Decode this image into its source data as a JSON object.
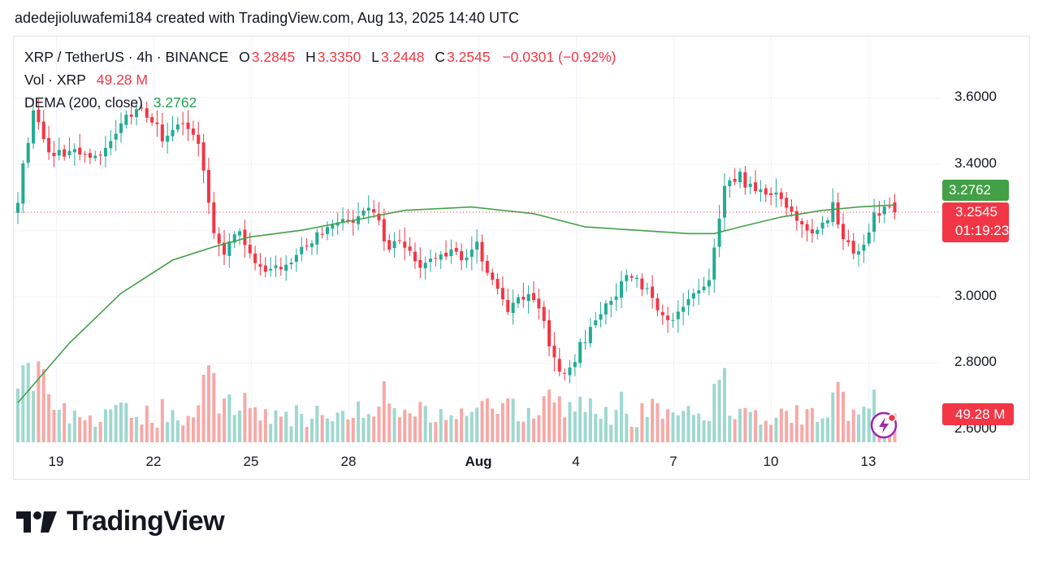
{
  "caption": "adedejioluwafemi184 created with TradingView.com, Aug 13, 2025 14:40 UTC",
  "legend": {
    "symbol": "XRP / TetherUS · 4h · BINANCE",
    "o_label": "O",
    "o_value": "3.2845",
    "h_label": "H",
    "h_value": "3.3350",
    "l_label": "L",
    "l_value": "3.2448",
    "c_label": "C",
    "c_value": "3.2545",
    "change": "−0.0301 (−0.92%)",
    "vol_label": "Vol · XRP",
    "vol_value": "49.28 M",
    "dema_label": "DEMA (200, close)",
    "dema_value": "3.2762"
  },
  "price_tags": {
    "dema": "3.2762",
    "last": "3.2545",
    "countdown": "01:19:23",
    "volume": "49.28 M"
  },
  "brand": "TradingView",
  "colors": {
    "up": "#22ab94",
    "down": "#f23645",
    "dema": "#43a047",
    "up_vol": "#9fd8cf",
    "down_vol": "#f7a9a7"
  },
  "chart_data": {
    "type": "candlestick",
    "title": "XRP / TetherUS · 4h · BINANCE",
    "y_ticks": [
      "3.6000",
      "3.4000",
      "3.0000",
      "2.8000",
      "2.6000"
    ],
    "ylim": [
      2.58,
      3.63
    ],
    "x_ticks": [
      "19",
      "22",
      "25",
      "28",
      "Aug",
      "4",
      "7",
      "10",
      "13"
    ],
    "last_price": 3.2545,
    "dema_last": 3.2762,
    "anchors": [
      {
        "i": 0,
        "p": 3.3
      },
      {
        "i": 3,
        "p": 3.56
      },
      {
        "i": 6,
        "p": 3.43
      },
      {
        "i": 10,
        "p": 3.44
      },
      {
        "i": 15,
        "p": 3.41
      },
      {
        "i": 20,
        "p": 3.52
      },
      {
        "i": 24,
        "p": 3.58
      },
      {
        "i": 28,
        "p": 3.48
      },
      {
        "i": 32,
        "p": 3.53
      },
      {
        "i": 35,
        "p": 3.46
      },
      {
        "i": 38,
        "p": 3.2
      },
      {
        "i": 40,
        "p": 3.13
      },
      {
        "i": 43,
        "p": 3.2
      },
      {
        "i": 45,
        "p": 3.14
      },
      {
        "i": 48,
        "p": 3.06
      },
      {
        "i": 51,
        "p": 3.09
      },
      {
        "i": 55,
        "p": 3.15
      },
      {
        "i": 58,
        "p": 3.18
      },
      {
        "i": 62,
        "p": 3.21
      },
      {
        "i": 66,
        "p": 3.24
      },
      {
        "i": 69,
        "p": 3.27
      },
      {
        "i": 71,
        "p": 3.16
      },
      {
        "i": 75,
        "p": 3.15
      },
      {
        "i": 78,
        "p": 3.09
      },
      {
        "i": 82,
        "p": 3.13
      },
      {
        "i": 86,
        "p": 3.12
      },
      {
        "i": 89,
        "p": 3.15
      },
      {
        "i": 92,
        "p": 3.05
      },
      {
        "i": 95,
        "p": 2.97
      },
      {
        "i": 99,
        "p": 3.01
      },
      {
        "i": 102,
        "p": 2.92
      },
      {
        "i": 105,
        "p": 2.76
      },
      {
        "i": 108,
        "p": 2.82
      },
      {
        "i": 112,
        "p": 2.93
      },
      {
        "i": 116,
        "p": 3.01
      },
      {
        "i": 119,
        "p": 3.07
      },
      {
        "i": 122,
        "p": 3.02
      },
      {
        "i": 125,
        "p": 2.95
      },
      {
        "i": 128,
        "p": 2.94
      },
      {
        "i": 131,
        "p": 3.0
      },
      {
        "i": 134,
        "p": 3.05
      },
      {
        "i": 137,
        "p": 3.32
      },
      {
        "i": 140,
        "p": 3.36
      },
      {
        "i": 143,
        "p": 3.31
      },
      {
        "i": 146,
        "p": 3.32
      },
      {
        "i": 149,
        "p": 3.27
      },
      {
        "i": 152,
        "p": 3.22
      },
      {
        "i": 155,
        "p": 3.19
      },
      {
        "i": 158,
        "p": 3.27
      },
      {
        "i": 161,
        "p": 3.15
      },
      {
        "i": 163,
        "p": 3.13
      },
      {
        "i": 166,
        "p": 3.25
      },
      {
        "i": 169,
        "p": 3.27
      },
      {
        "i": 170,
        "p": 3.2545
      }
    ],
    "dema": [
      {
        "i": 0,
        "v": 2.68
      },
      {
        "i": 10,
        "v": 2.86
      },
      {
        "i": 20,
        "v": 3.01
      },
      {
        "i": 30,
        "v": 3.11
      },
      {
        "i": 38,
        "v": 3.15
      },
      {
        "i": 45,
        "v": 3.18
      },
      {
        "i": 55,
        "v": 3.2
      },
      {
        "i": 65,
        "v": 3.23
      },
      {
        "i": 75,
        "v": 3.26
      },
      {
        "i": 88,
        "v": 3.27
      },
      {
        "i": 100,
        "v": 3.25
      },
      {
        "i": 110,
        "v": 3.21
      },
      {
        "i": 120,
        "v": 3.2
      },
      {
        "i": 130,
        "v": 3.19
      },
      {
        "i": 135,
        "v": 3.19
      },
      {
        "i": 140,
        "v": 3.21
      },
      {
        "i": 148,
        "v": 3.24
      },
      {
        "i": 156,
        "v": 3.26
      },
      {
        "i": 163,
        "v": 3.27
      },
      {
        "i": 170,
        "v": 3.2762
      }
    ],
    "volume_note": "per-candle volume bars, last value 49.28 M"
  }
}
